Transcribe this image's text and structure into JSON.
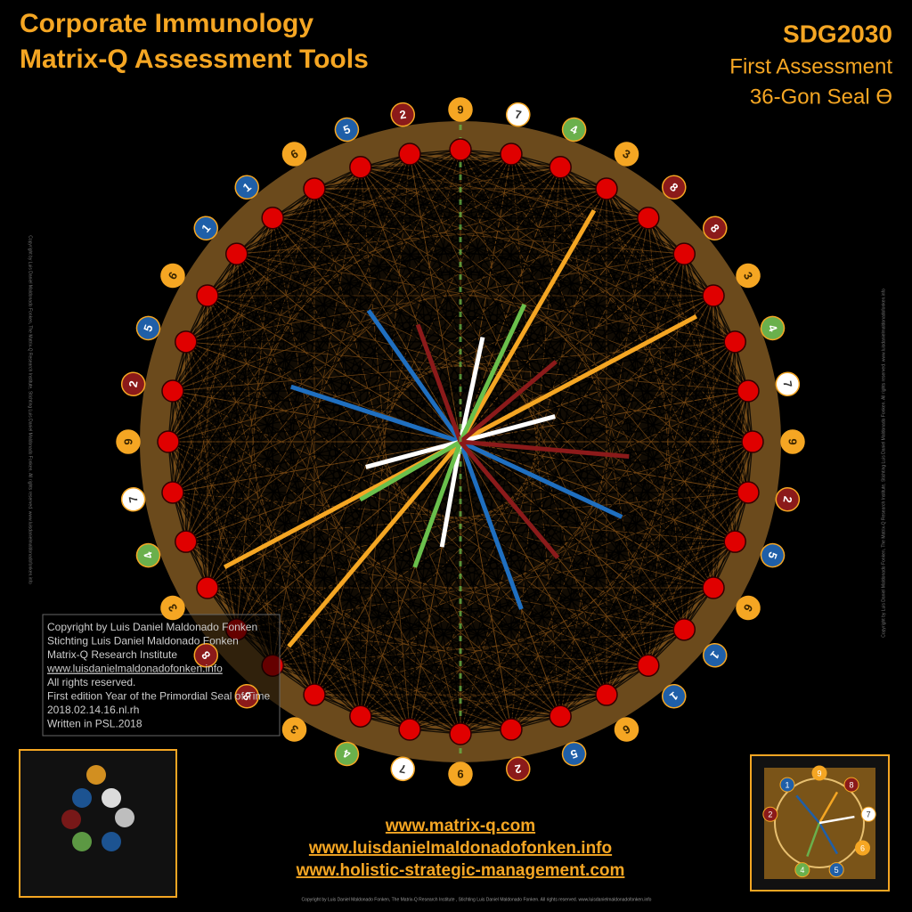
{
  "header": {
    "title_lines": [
      "Corporate Immunology",
      "Matrix-Q Assessment Tools"
    ],
    "code": "SDG2030",
    "subtitle_lines": [
      "First Assessment",
      "36-Gon Seal Ө"
    ]
  },
  "seal": {
    "labels": [
      "9",
      "7",
      "4",
      "3",
      "8",
      "8",
      "3",
      "4",
      "7",
      "9",
      "2",
      "5",
      "6",
      "1",
      "1",
      "6",
      "5",
      "2",
      "9",
      "7",
      "4",
      "3",
      "8",
      "8",
      "3",
      "4",
      "7",
      "9",
      "2",
      "5",
      "6",
      "1",
      "1",
      "6",
      "5",
      "2"
    ]
  },
  "copyright_box": {
    "lines": [
      "Copyright by Luis Daniel Maldonado Fonken",
      "Stichting Luis Daniel Maldonado Fonken",
      "Matrix-Q Research Institute",
      "www.luisdanielmaldonadofonken.info",
      "All rights reserved.",
      "First edition Year of the Primordial Seal of Time",
      "2018.02.14.16.nl.rh",
      "Written in PSL.2018"
    ]
  },
  "side_note": "Copyright by Luis Daniel Maldonado Fonken, The Matrix-Q Research Institute, Stichting Luis Daniel Maldonado Fonken. All rights reserved. www.luisdanielmaldonadofonken.info",
  "links": [
    "www.matrix-q.com",
    "www.luisdanielmaldonadofonken.info",
    "www.holistic-strategic-management.com"
  ],
  "thumbnail_right": {
    "labels": [
      "9",
      "8",
      "7",
      "6",
      "5",
      "4",
      "2",
      "1"
    ]
  },
  "footer": "Copyright by Luis Daniel Maldonado Fonken, The Matrix-Q Research Institute , Stichting Luis Daniel Maldonado Fonken. All rights reserved. www.luisdanielmaldonadofonken.info"
}
